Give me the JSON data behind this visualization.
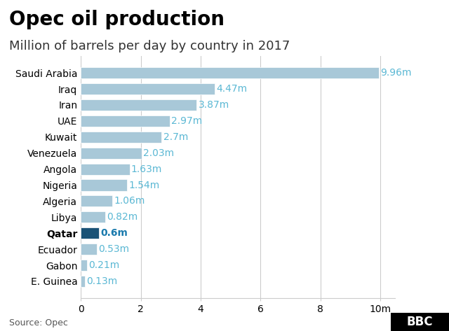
{
  "title": "Opec oil production",
  "subtitle": "Million of barrels per day by country in 2017",
  "source": "Source: Opec",
  "countries": [
    "Saudi Arabia",
    "Iraq",
    "Iran",
    "UAE",
    "Kuwait",
    "Venezuela",
    "Angola",
    "Nigeria",
    "Algeria",
    "Libya",
    "Qatar",
    "Ecuador",
    "Gabon",
    "E. Guinea"
  ],
  "values": [
    9.96,
    4.47,
    3.87,
    2.97,
    2.7,
    2.03,
    1.63,
    1.54,
    1.06,
    0.82,
    0.6,
    0.53,
    0.21,
    0.13
  ],
  "labels": [
    "9.96m",
    "4.47m",
    "3.87m",
    "2.97m",
    "2.7m",
    "2.03m",
    "1.63m",
    "1.54m",
    "1.06m",
    "0.82m",
    "0.6m",
    "0.53m",
    "0.21m",
    "0.13m"
  ],
  "bar_color_default": "#a8c8d8",
  "bar_color_highlight": "#1a5276",
  "highlight_index": 10,
  "label_color": "#5bb8d4",
  "highlight_label_color": "#1a7aad",
  "xlim": [
    0,
    10.5
  ],
  "xticks": [
    0,
    2,
    4,
    6,
    8,
    10
  ],
  "xtick_labels": [
    "0",
    "2",
    "4",
    "6",
    "8",
    "10m"
  ],
  "background_color": "#ffffff",
  "grid_color": "#cccccc",
  "title_fontsize": 20,
  "subtitle_fontsize": 13,
  "label_fontsize": 10,
  "tick_label_fontsize": 10,
  "source_fontsize": 9,
  "bbc_text": "BBC",
  "bbc_bg": "#000000",
  "bbc_text_color": "#ffffff"
}
